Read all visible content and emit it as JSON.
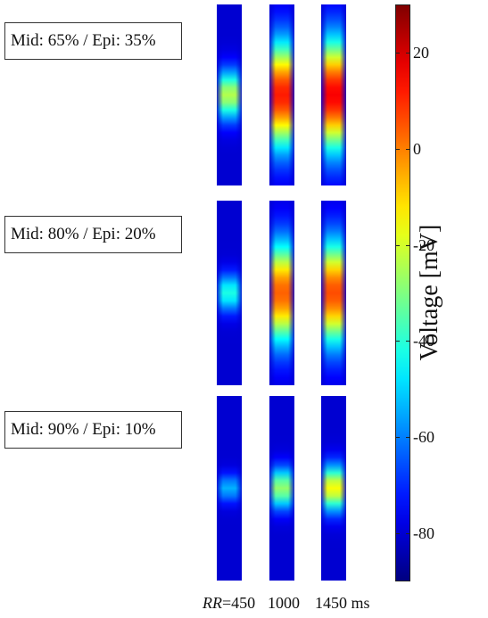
{
  "rows": [
    {
      "label": "Mid: 65% / Epi: 35%",
      "strips": [
        {
          "peak": 0.55,
          "spread": 0.4,
          "edge": 0.15
        },
        {
          "peak": 0.85,
          "spread": 0.85,
          "edge": 0.55
        },
        {
          "peak": 0.88,
          "spread": 0.9,
          "edge": 0.6
        }
      ]
    },
    {
      "label": "Mid: 80% / Epi: 20%",
      "strips": [
        {
          "peak": 0.4,
          "spread": 0.3,
          "edge": 0.1
        },
        {
          "peak": 0.78,
          "spread": 0.8,
          "edge": 0.5
        },
        {
          "peak": 0.8,
          "spread": 0.82,
          "edge": 0.52
        }
      ]
    },
    {
      "label": "Mid: 90% / Epi: 10%",
      "strips": [
        {
          "peak": 0.3,
          "spread": 0.22,
          "edge": 0.05
        },
        {
          "peak": 0.52,
          "spread": 0.32,
          "edge": 0.08
        },
        {
          "peak": 0.62,
          "spread": 0.36,
          "edge": 0.08
        }
      ]
    }
  ],
  "colorbar": {
    "title": "Voltage [mV]",
    "min": -90,
    "max": 30,
    "ticks": [
      "20",
      "0",
      "-20",
      "-40",
      "-60",
      "-80"
    ],
    "tick_values": [
      20,
      0,
      -20,
      -40,
      -60,
      -80
    ],
    "colors": [
      "#00007f",
      "#0000ff",
      "#007fff",
      "#00ffff",
      "#7fff7f",
      "#ffff00",
      "#ff7f00",
      "#ff0000",
      "#7f0000"
    ]
  },
  "bottom": {
    "rr_label": "RR",
    "rr_eq": "=450",
    "v2": "1000",
    "v3": "1450 ms"
  }
}
